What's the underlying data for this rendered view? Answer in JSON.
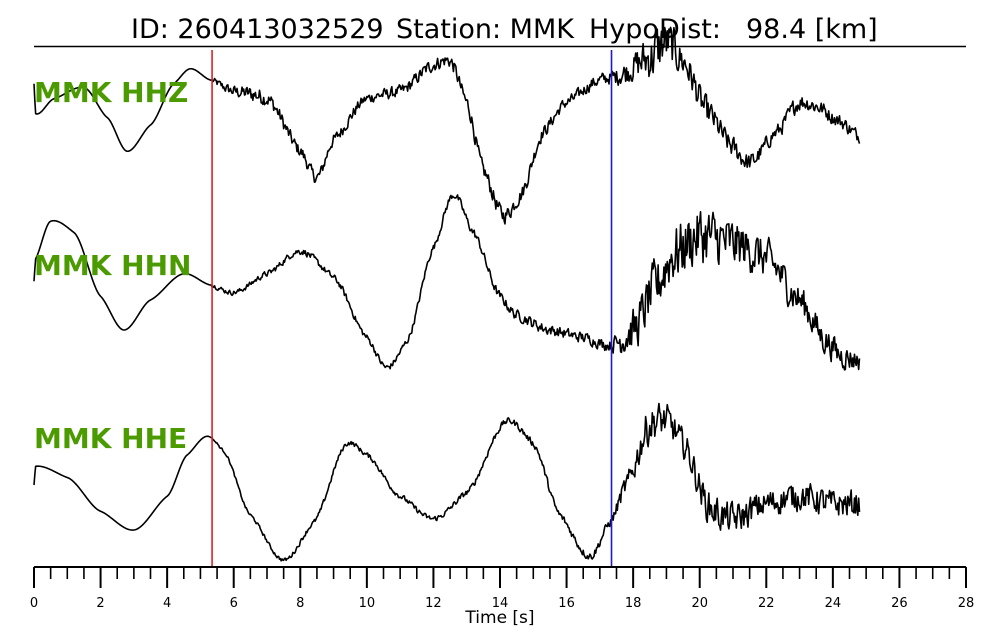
{
  "header": {
    "id_text": "ID: 260413032529",
    "station_text": "Station: MMK",
    "hypodist_text": "HypoDist:",
    "hypodist_value": "98.4 [km]"
  },
  "colors": {
    "label": "#4a9a00",
    "p_pick": "#e02020",
    "s_pick": "#1a1acc",
    "trace": "#000000"
  },
  "chart_data": {
    "type": "line",
    "title": "ID: 260413032529   Station: MMK   HypoDist:    98.4 [km]",
    "xlabel": "Time [s]",
    "xlim": [
      0,
      28
    ],
    "x_major_ticks": [
      0,
      2,
      4,
      6,
      8,
      10,
      12,
      14,
      16,
      18,
      20,
      22,
      24,
      26,
      28
    ],
    "x_minor_tick_step": 0.5,
    "p_pick_time": 5.35,
    "s_pick_time": 17.35,
    "series": [
      {
        "name": "MMK HHZ",
        "noise_after": 5.35,
        "points": [
          [
            0.0,
            0.55
          ],
          [
            0.05,
            0.15
          ],
          [
            0.6,
            0.35
          ],
          [
            1.5,
            0.5
          ],
          [
            2.2,
            0.1
          ],
          [
            2.8,
            -0.35
          ],
          [
            3.5,
            0.0
          ],
          [
            4.2,
            0.55
          ],
          [
            4.7,
            0.75
          ],
          [
            5.3,
            0.6
          ],
          [
            6.0,
            0.45
          ],
          [
            7.0,
            0.35
          ],
          [
            8.0,
            -0.35
          ],
          [
            8.5,
            -0.7
          ],
          [
            9.0,
            -0.2
          ],
          [
            10.0,
            0.35
          ],
          [
            11.0,
            0.45
          ],
          [
            12.0,
            0.8
          ],
          [
            12.5,
            0.85
          ],
          [
            13.0,
            0.3
          ],
          [
            13.5,
            -0.6
          ],
          [
            14.1,
            -1.2
          ],
          [
            14.6,
            -0.95
          ],
          [
            15.3,
            -0.1
          ],
          [
            16.0,
            0.3
          ],
          [
            17.0,
            0.6
          ],
          [
            17.5,
            0.65
          ],
          [
            18.5,
            0.9
          ],
          [
            19.0,
            1.1
          ],
          [
            19.5,
            0.85
          ],
          [
            20.2,
            0.2
          ],
          [
            21.0,
            -0.3
          ],
          [
            21.5,
            -0.5
          ],
          [
            22.3,
            -0.1
          ],
          [
            23.0,
            0.3
          ],
          [
            23.5,
            0.25
          ],
          [
            24.2,
            0.05
          ],
          [
            24.8,
            -0.15
          ]
        ],
        "noise_amplitude": [
          [
            5.3,
            0.05
          ],
          [
            6.6,
            0.15
          ],
          [
            8.0,
            0.12
          ],
          [
            10.0,
            0.1
          ],
          [
            12.0,
            0.12
          ],
          [
            14.0,
            0.15
          ],
          [
            16.0,
            0.1
          ],
          [
            17.3,
            0.12
          ],
          [
            18.0,
            0.25
          ],
          [
            18.7,
            0.5
          ],
          [
            19.5,
            0.3
          ],
          [
            20.5,
            0.22
          ],
          [
            22.0,
            0.14
          ],
          [
            23.0,
            0.15
          ],
          [
            24.8,
            0.12
          ]
        ]
      },
      {
        "name": "MMK HHN",
        "noise_after": 5.35,
        "points": [
          [
            0.0,
            0.25
          ],
          [
            0.05,
            0.55
          ],
          [
            0.5,
            1.05
          ],
          [
            1.2,
            0.9
          ],
          [
            2.0,
            0.05
          ],
          [
            2.7,
            -0.4
          ],
          [
            3.5,
            0.0
          ],
          [
            4.5,
            0.35
          ],
          [
            5.3,
            0.2
          ],
          [
            6.0,
            0.1
          ],
          [
            7.0,
            0.35
          ],
          [
            8.0,
            0.65
          ],
          [
            9.0,
            0.3
          ],
          [
            10.0,
            -0.5
          ],
          [
            10.6,
            -0.9
          ],
          [
            11.2,
            -0.55
          ],
          [
            12.0,
            0.7
          ],
          [
            12.6,
            1.4
          ],
          [
            13.2,
            0.9
          ],
          [
            14.0,
            0.05
          ],
          [
            14.5,
            -0.2
          ],
          [
            15.5,
            -0.4
          ],
          [
            16.5,
            -0.5
          ],
          [
            17.3,
            -0.6
          ],
          [
            18.0,
            -0.4
          ],
          [
            18.7,
            0.2
          ],
          [
            19.2,
            0.6
          ],
          [
            20.0,
            0.85
          ],
          [
            21.0,
            0.75
          ],
          [
            22.0,
            0.55
          ],
          [
            23.0,
            0.0
          ],
          [
            23.8,
            -0.55
          ],
          [
            24.3,
            -0.75
          ],
          [
            24.8,
            -0.8
          ]
        ],
        "noise_amplitude": [
          [
            5.3,
            0.04
          ],
          [
            8.0,
            0.06
          ],
          [
            12.0,
            0.06
          ],
          [
            15.0,
            0.1
          ],
          [
            17.3,
            0.1
          ],
          [
            17.8,
            0.35
          ],
          [
            18.8,
            0.5
          ],
          [
            20.0,
            0.55
          ],
          [
            22.0,
            0.35
          ],
          [
            24.0,
            0.25
          ],
          [
            24.8,
            0.2
          ]
        ]
      },
      {
        "name": "MMK HHE",
        "noise_after": 5.35,
        "points": [
          [
            0.0,
            -0.2
          ],
          [
            0.05,
            0.05
          ],
          [
            1.0,
            -0.1
          ],
          [
            2.0,
            -0.55
          ],
          [
            3.0,
            -0.8
          ],
          [
            4.0,
            -0.35
          ],
          [
            4.6,
            0.2
          ],
          [
            5.2,
            0.45
          ],
          [
            5.7,
            0.25
          ],
          [
            6.5,
            -0.6
          ],
          [
            7.5,
            -1.2
          ],
          [
            8.4,
            -0.7
          ],
          [
            9.4,
            0.35
          ],
          [
            10.0,
            0.2
          ],
          [
            11.0,
            -0.35
          ],
          [
            12.0,
            -0.65
          ],
          [
            13.0,
            -0.3
          ],
          [
            14.2,
            0.65
          ],
          [
            15.0,
            0.35
          ],
          [
            15.8,
            -0.6
          ],
          [
            16.7,
            -1.15
          ],
          [
            17.3,
            -0.7
          ],
          [
            17.8,
            -0.2
          ],
          [
            18.5,
            0.6
          ],
          [
            19.0,
            0.65
          ],
          [
            19.5,
            0.35
          ],
          [
            20.3,
            -0.5
          ],
          [
            21.0,
            -0.65
          ],
          [
            22.0,
            -0.45
          ],
          [
            23.0,
            -0.35
          ],
          [
            24.0,
            -0.45
          ],
          [
            24.8,
            -0.45
          ]
        ],
        "noise_amplitude": [
          [
            5.3,
            0.02
          ],
          [
            8.0,
            0.04
          ],
          [
            12.0,
            0.05
          ],
          [
            15.0,
            0.06
          ],
          [
            17.3,
            0.08
          ],
          [
            18.5,
            0.35
          ],
          [
            19.5,
            0.25
          ],
          [
            20.5,
            0.3
          ],
          [
            22.0,
            0.25
          ],
          [
            24.8,
            0.25
          ]
        ]
      }
    ]
  }
}
